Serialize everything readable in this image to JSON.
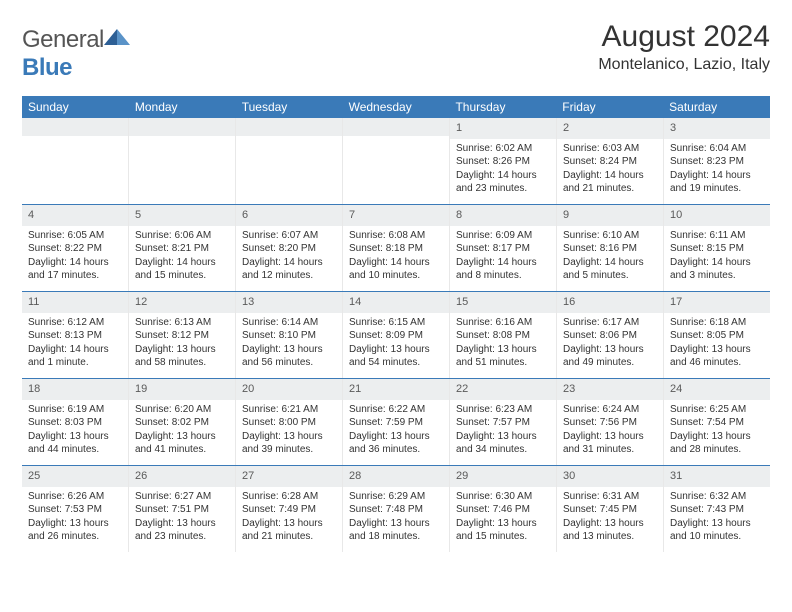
{
  "brand": {
    "general": "General",
    "blue": "Blue"
  },
  "title": "August 2024",
  "location": "Montelanico, Lazio, Italy",
  "colors": {
    "header_bg": "#3a7ab8",
    "header_text": "#ffffff",
    "daynum_bg": "#eceeef",
    "rule": "#3a7ab8",
    "cell_border": "#e8e8e8",
    "text": "#333333",
    "page_bg": "#ffffff"
  },
  "dayNames": [
    "Sunday",
    "Monday",
    "Tuesday",
    "Wednesday",
    "Thursday",
    "Friday",
    "Saturday"
  ],
  "weeks": [
    [
      {
        "n": "",
        "sr": "",
        "ss": "",
        "dl1": "",
        "dl2": "",
        "empty": true
      },
      {
        "n": "",
        "sr": "",
        "ss": "",
        "dl1": "",
        "dl2": "",
        "empty": true
      },
      {
        "n": "",
        "sr": "",
        "ss": "",
        "dl1": "",
        "dl2": "",
        "empty": true
      },
      {
        "n": "",
        "sr": "",
        "ss": "",
        "dl1": "",
        "dl2": "",
        "empty": true
      },
      {
        "n": "1",
        "sr": "Sunrise: 6:02 AM",
        "ss": "Sunset: 8:26 PM",
        "dl1": "Daylight: 14 hours",
        "dl2": "and 23 minutes."
      },
      {
        "n": "2",
        "sr": "Sunrise: 6:03 AM",
        "ss": "Sunset: 8:24 PM",
        "dl1": "Daylight: 14 hours",
        "dl2": "and 21 minutes."
      },
      {
        "n": "3",
        "sr": "Sunrise: 6:04 AM",
        "ss": "Sunset: 8:23 PM",
        "dl1": "Daylight: 14 hours",
        "dl2": "and 19 minutes."
      }
    ],
    [
      {
        "n": "4",
        "sr": "Sunrise: 6:05 AM",
        "ss": "Sunset: 8:22 PM",
        "dl1": "Daylight: 14 hours",
        "dl2": "and 17 minutes."
      },
      {
        "n": "5",
        "sr": "Sunrise: 6:06 AM",
        "ss": "Sunset: 8:21 PM",
        "dl1": "Daylight: 14 hours",
        "dl2": "and 15 minutes."
      },
      {
        "n": "6",
        "sr": "Sunrise: 6:07 AM",
        "ss": "Sunset: 8:20 PM",
        "dl1": "Daylight: 14 hours",
        "dl2": "and 12 minutes."
      },
      {
        "n": "7",
        "sr": "Sunrise: 6:08 AM",
        "ss": "Sunset: 8:18 PM",
        "dl1": "Daylight: 14 hours",
        "dl2": "and 10 minutes."
      },
      {
        "n": "8",
        "sr": "Sunrise: 6:09 AM",
        "ss": "Sunset: 8:17 PM",
        "dl1": "Daylight: 14 hours",
        "dl2": "and 8 minutes."
      },
      {
        "n": "9",
        "sr": "Sunrise: 6:10 AM",
        "ss": "Sunset: 8:16 PM",
        "dl1": "Daylight: 14 hours",
        "dl2": "and 5 minutes."
      },
      {
        "n": "10",
        "sr": "Sunrise: 6:11 AM",
        "ss": "Sunset: 8:15 PM",
        "dl1": "Daylight: 14 hours",
        "dl2": "and 3 minutes."
      }
    ],
    [
      {
        "n": "11",
        "sr": "Sunrise: 6:12 AM",
        "ss": "Sunset: 8:13 PM",
        "dl1": "Daylight: 14 hours",
        "dl2": "and 1 minute."
      },
      {
        "n": "12",
        "sr": "Sunrise: 6:13 AM",
        "ss": "Sunset: 8:12 PM",
        "dl1": "Daylight: 13 hours",
        "dl2": "and 58 minutes."
      },
      {
        "n": "13",
        "sr": "Sunrise: 6:14 AM",
        "ss": "Sunset: 8:10 PM",
        "dl1": "Daylight: 13 hours",
        "dl2": "and 56 minutes."
      },
      {
        "n": "14",
        "sr": "Sunrise: 6:15 AM",
        "ss": "Sunset: 8:09 PM",
        "dl1": "Daylight: 13 hours",
        "dl2": "and 54 minutes."
      },
      {
        "n": "15",
        "sr": "Sunrise: 6:16 AM",
        "ss": "Sunset: 8:08 PM",
        "dl1": "Daylight: 13 hours",
        "dl2": "and 51 minutes."
      },
      {
        "n": "16",
        "sr": "Sunrise: 6:17 AM",
        "ss": "Sunset: 8:06 PM",
        "dl1": "Daylight: 13 hours",
        "dl2": "and 49 minutes."
      },
      {
        "n": "17",
        "sr": "Sunrise: 6:18 AM",
        "ss": "Sunset: 8:05 PM",
        "dl1": "Daylight: 13 hours",
        "dl2": "and 46 minutes."
      }
    ],
    [
      {
        "n": "18",
        "sr": "Sunrise: 6:19 AM",
        "ss": "Sunset: 8:03 PM",
        "dl1": "Daylight: 13 hours",
        "dl2": "and 44 minutes."
      },
      {
        "n": "19",
        "sr": "Sunrise: 6:20 AM",
        "ss": "Sunset: 8:02 PM",
        "dl1": "Daylight: 13 hours",
        "dl2": "and 41 minutes."
      },
      {
        "n": "20",
        "sr": "Sunrise: 6:21 AM",
        "ss": "Sunset: 8:00 PM",
        "dl1": "Daylight: 13 hours",
        "dl2": "and 39 minutes."
      },
      {
        "n": "21",
        "sr": "Sunrise: 6:22 AM",
        "ss": "Sunset: 7:59 PM",
        "dl1": "Daylight: 13 hours",
        "dl2": "and 36 minutes."
      },
      {
        "n": "22",
        "sr": "Sunrise: 6:23 AM",
        "ss": "Sunset: 7:57 PM",
        "dl1": "Daylight: 13 hours",
        "dl2": "and 34 minutes."
      },
      {
        "n": "23",
        "sr": "Sunrise: 6:24 AM",
        "ss": "Sunset: 7:56 PM",
        "dl1": "Daylight: 13 hours",
        "dl2": "and 31 minutes."
      },
      {
        "n": "24",
        "sr": "Sunrise: 6:25 AM",
        "ss": "Sunset: 7:54 PM",
        "dl1": "Daylight: 13 hours",
        "dl2": "and 28 minutes."
      }
    ],
    [
      {
        "n": "25",
        "sr": "Sunrise: 6:26 AM",
        "ss": "Sunset: 7:53 PM",
        "dl1": "Daylight: 13 hours",
        "dl2": "and 26 minutes."
      },
      {
        "n": "26",
        "sr": "Sunrise: 6:27 AM",
        "ss": "Sunset: 7:51 PM",
        "dl1": "Daylight: 13 hours",
        "dl2": "and 23 minutes."
      },
      {
        "n": "27",
        "sr": "Sunrise: 6:28 AM",
        "ss": "Sunset: 7:49 PM",
        "dl1": "Daylight: 13 hours",
        "dl2": "and 21 minutes."
      },
      {
        "n": "28",
        "sr": "Sunrise: 6:29 AM",
        "ss": "Sunset: 7:48 PM",
        "dl1": "Daylight: 13 hours",
        "dl2": "and 18 minutes."
      },
      {
        "n": "29",
        "sr": "Sunrise: 6:30 AM",
        "ss": "Sunset: 7:46 PM",
        "dl1": "Daylight: 13 hours",
        "dl2": "and 15 minutes."
      },
      {
        "n": "30",
        "sr": "Sunrise: 6:31 AM",
        "ss": "Sunset: 7:45 PM",
        "dl1": "Daylight: 13 hours",
        "dl2": "and 13 minutes."
      },
      {
        "n": "31",
        "sr": "Sunrise: 6:32 AM",
        "ss": "Sunset: 7:43 PM",
        "dl1": "Daylight: 13 hours",
        "dl2": "and 10 minutes."
      }
    ]
  ]
}
